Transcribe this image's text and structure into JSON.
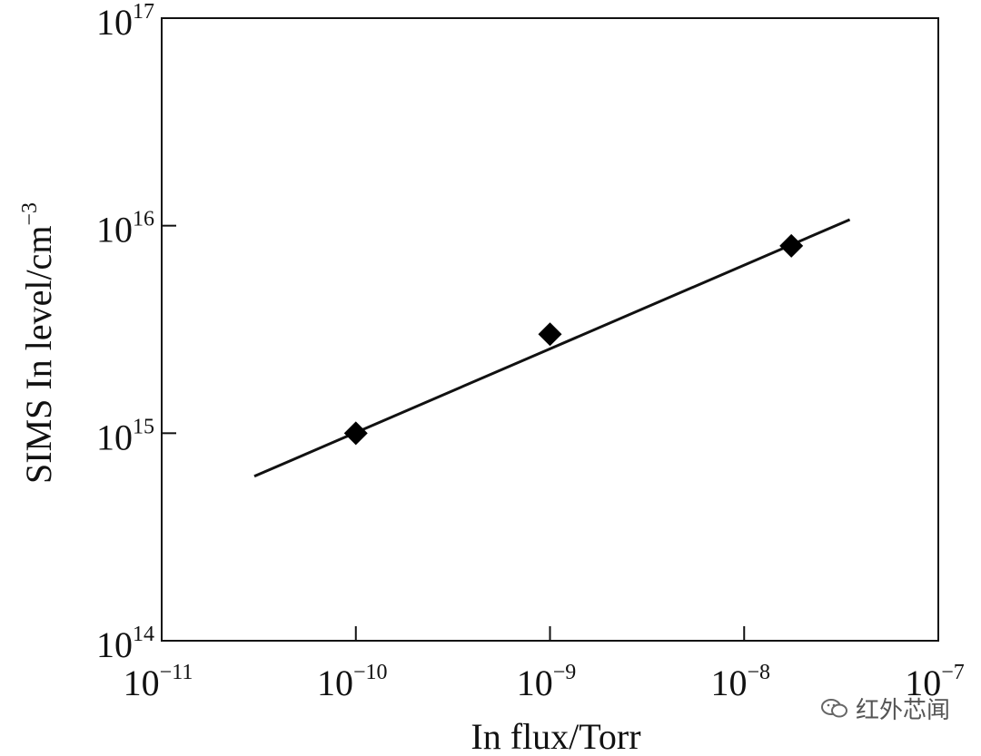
{
  "chart_data": {
    "type": "scatter",
    "xlabel": "In flux/Torr",
    "ylabel_text": "SIMS In level/cm",
    "ylabel_superscript": "−3",
    "x_scale": "log",
    "y_scale": "log",
    "xlim": [
      1e-11,
      1e-07
    ],
    "ylim": [
      100000000000000.0,
      1e+17
    ],
    "x_ticks": [
      {
        "value": 1e-11,
        "base": "10",
        "exp": "−11"
      },
      {
        "value": 1e-10,
        "base": "10",
        "exp": "−10"
      },
      {
        "value": 1e-09,
        "base": "10",
        "exp": "−9"
      },
      {
        "value": 1e-08,
        "base": "10",
        "exp": "−8"
      },
      {
        "value": 1e-07,
        "base": "10",
        "exp": "−7"
      }
    ],
    "y_ticks": [
      {
        "value": 100000000000000.0,
        "base": "10",
        "exp": "14"
      },
      {
        "value": 1000000000000000.0,
        "base": "10",
        "exp": "15"
      },
      {
        "value": 1e+16,
        "base": "10",
        "exp": "16"
      },
      {
        "value": 1e+17,
        "base": "10",
        "exp": "17"
      }
    ],
    "series": [
      {
        "marker": "diamond",
        "points": [
          {
            "x": 1e-10,
            "y": 1000000000000000.0
          },
          {
            "x": 1e-09,
            "y": 3000000000000000.0
          },
          {
            "x": 1.75e-08,
            "y": 8000000000000000.0
          }
        ]
      }
    ],
    "fit_line": {
      "x": [
        3e-11,
        3.5e-08
      ],
      "y": [
        620000000000000.0,
        1.07e+16
      ]
    },
    "grid": false
  },
  "watermark": {
    "icon": "wechat-icon",
    "text": "红外芯闻"
  }
}
